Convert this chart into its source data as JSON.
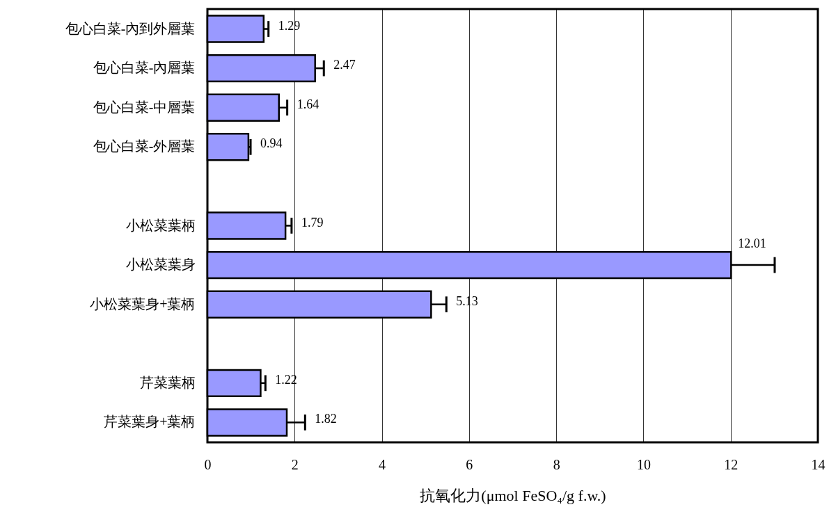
{
  "chart_data": {
    "type": "bar",
    "orientation": "horizontal",
    "xlabel": "抗氧化力(μmol FeSO₄/g f.w.)",
    "categories": [
      "包心白菜-內到外層葉",
      "包心白菜-內層葉",
      "包心白菜-中層葉",
      "包心白菜-外層葉",
      null,
      "小松菜葉柄",
      "小松菜葉身",
      "小松菜葉身+葉柄",
      null,
      "芹菜葉柄",
      "芹菜葉身+葉柄"
    ],
    "values": [
      1.29,
      2.47,
      1.64,
      0.94,
      null,
      1.79,
      12.01,
      5.13,
      null,
      1.22,
      1.82
    ],
    "errors": [
      [
        1.29,
        1.4
      ],
      [
        2.47,
        2.67
      ],
      [
        1.64,
        1.83
      ],
      [
        0.94,
        0.99
      ],
      null,
      [
        1.79,
        1.93
      ],
      [
        12.01,
        13.01
      ],
      [
        5.13,
        5.48
      ],
      null,
      [
        1.22,
        1.33
      ],
      [
        1.82,
        2.24
      ]
    ],
    "color": "#9999ff",
    "data_labels": true,
    "xlim": [
      0,
      14
    ],
    "xticks": [
      0,
      2,
      4,
      6,
      8,
      10,
      12,
      14
    ],
    "grid": "x"
  }
}
